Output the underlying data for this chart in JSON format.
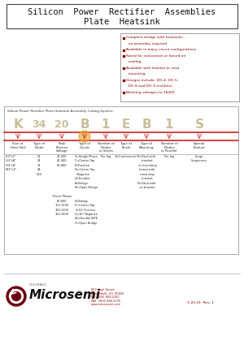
{
  "title_line1": "Silicon  Power  Rectifier  Assemblies",
  "title_line2": "Plate  Heatsink",
  "bg_color": "#ffffff",
  "bullet_items": [
    "Complete bridge with heatsinks -",
    "  no assembly required",
    "Available in many circuit configurations",
    "Rated for convection or forced air",
    "  cooling",
    "Available with bracket or stud",
    "  mounting",
    "Designs include: DO-4, DO-5,",
    "  DO-8 and DO-9 rectifiers",
    "Blocking voltages to 1600V"
  ],
  "bullet_flags": [
    true,
    false,
    true,
    true,
    false,
    true,
    false,
    true,
    false,
    true
  ],
  "coding_title": "Silicon Power Rectifier Plate Heatsink Assembly Coding System",
  "code_letters": [
    "K",
    "34",
    "20",
    "B",
    "1",
    "E",
    "B",
    "1",
    "S"
  ],
  "col_headers": [
    "Size of\nHeat Sink",
    "Type of\nDiode",
    "Peak\nReverse\nVoltage",
    "Type of\nCircuit",
    "Number of\nDiodes\nin Series",
    "Type of\nFinish",
    "Type of\nMounting",
    "Number of\nDiodes\nin Parallel",
    "Special\nFeature"
  ],
  "col1_data": [
    "S-3\"x5\"",
    "G-3\"x8\"",
    "H-3\"x8\"",
    "M-3\"x3\""
  ],
  "col2_data": [
    "21",
    "24",
    "31",
    "43",
    "504"
  ],
  "col3_data_single": [
    "20-200",
    "40-400",
    "80-800"
  ],
  "col3_data_three": [
    "80-800",
    "100-1000",
    "120-1200",
    "160-1600"
  ],
  "col4_single": [
    "S=Single Phase",
    "C=Center Tap",
    "P=Positive",
    "N=Center Tap",
    "  Negative",
    "D=Doubler",
    "B=Bridge",
    "M=Open Bridge"
  ],
  "col4_three_label": "Three Phase",
  "col4_three": [
    "Z=Bridge",
    "E=Center Tap",
    "Y=DC Positive",
    "Q=DC Negative",
    "W=Double WYE",
    "V=Open Bridge"
  ],
  "col5_data": "Per leg",
  "col6_data": "E=Commercial",
  "col7_data": [
    "B=Stud with",
    "  bracket",
    "  or insulating",
    "  board with",
    "  mounting",
    "  bracket",
    "N=Stud with",
    "  no bracket"
  ],
  "col8_data": "Per leg",
  "col9_data": [
    "Surge",
    "Suppressor"
  ],
  "microsemi_text": "Microsemi",
  "colorado_text": "COLORADO",
  "address_text": "800 Hoyt Street\nBroomfield, CO  80020\nPH: (303) 469-2161\nFAX: (303) 466-5775\nwww.microsemi.com",
  "doc_number": "3-20-01  Rev. 1",
  "text_color_dark": "#222222",
  "text_color_red": "#8b0000",
  "red_line_color": "#cc2222"
}
